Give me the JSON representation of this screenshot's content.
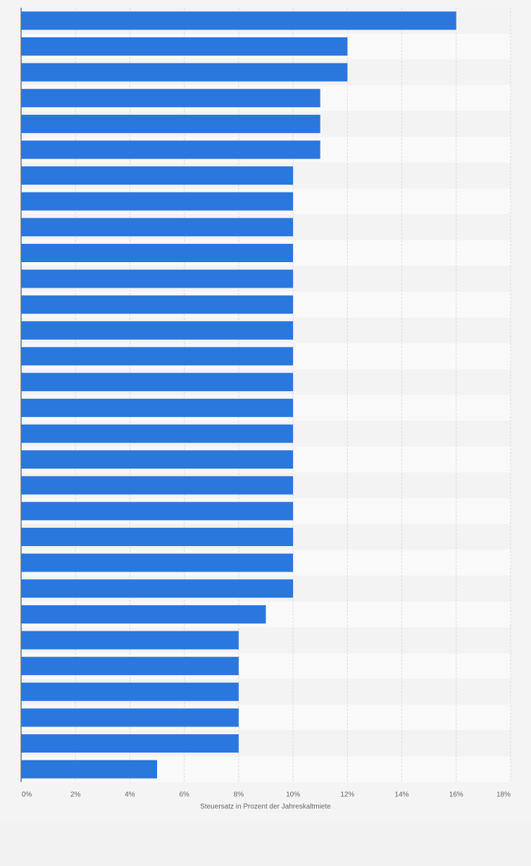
{
  "chart_data": {
    "type": "bar",
    "orientation": "horizontal",
    "categories": [
      null,
      null,
      null,
      null,
      null,
      null,
      null,
      null,
      null,
      null,
      null,
      null,
      null,
      null,
      null,
      null,
      null,
      null,
      null,
      null,
      null,
      null,
      null,
      null,
      null,
      null,
      null,
      null,
      null,
      null
    ],
    "values": [
      16,
      12,
      12,
      11,
      11,
      11,
      10,
      10,
      10,
      10,
      10,
      10,
      10,
      10,
      10,
      10,
      10,
      10,
      10,
      10,
      10,
      10,
      10,
      9,
      8,
      8,
      8,
      8,
      8,
      5
    ],
    "color": "#2a77dd",
    "xlabel": "Steuersatz in Prozent der Jahreskaltmiete",
    "xlim": [
      0,
      18
    ],
    "xticks": [
      {
        "value": 0,
        "label": "0%"
      },
      {
        "value": 2,
        "label": "2%"
      },
      {
        "value": 4,
        "label": "4%"
      },
      {
        "value": 6,
        "label": "6%"
      },
      {
        "value": 8,
        "label": "8%"
      },
      {
        "value": 10,
        "label": "10%"
      },
      {
        "value": 12,
        "label": "12%"
      },
      {
        "value": 14,
        "label": "14%"
      },
      {
        "value": 16,
        "label": "16%"
      },
      {
        "value": 18,
        "label": "18%"
      }
    ],
    "grid": true
  }
}
